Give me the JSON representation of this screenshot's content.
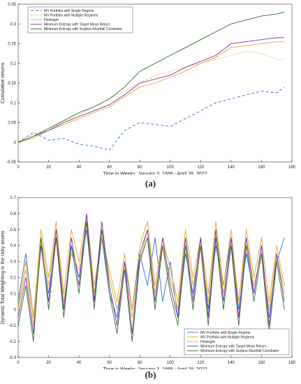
{
  "captions": {
    "a": "(a)",
    "b": "(b)"
  },
  "colors": {
    "mv_single": "#2f6fd6",
    "mv_multi": "#e0a830",
    "hindsight": "#e0a830",
    "me_target": "#7b2fa8",
    "me_surplus": "#2e6f2a"
  },
  "chart_data": [
    {
      "type": "line",
      "xlabel": "Time in Weeks: January 3, 1999 - April 28, 2022",
      "ylabel": "Cumulative returns",
      "xlim": [
        0,
        180
      ],
      "ylim": [
        -0.05,
        0.35
      ],
      "xticks": [
        0,
        20,
        40,
        60,
        80,
        100,
        120,
        140,
        160,
        180
      ],
      "yticks": [
        -0.05,
        0,
        0.05,
        0.1,
        0.15,
        0.2,
        0.25,
        0.3,
        0.35
      ],
      "legend_position": "top-left",
      "x_points": [
        0,
        10,
        20,
        30,
        40,
        50,
        60,
        70,
        80,
        90,
        100,
        110,
        120,
        130,
        140,
        150,
        160,
        170,
        175
      ],
      "series": [
        {
          "name": "MV Portfolio with Single Regime",
          "style": "dashed",
          "values": [
            0,
            0.025,
            0.005,
            0.01,
            -0.005,
            -0.01,
            -0.02,
            0.03,
            0.05,
            0.045,
            0.04,
            0.06,
            0.08,
            0.1,
            0.11,
            0.12,
            0.13,
            0.125,
            0.14
          ]
        },
        {
          "name": "MV Portfolio with Multiple Regimes",
          "style": "dotted",
          "values": [
            0,
            0.02,
            0.035,
            0.05,
            0.07,
            0.09,
            0.11,
            0.13,
            0.15,
            0.17,
            0.18,
            0.19,
            0.2,
            0.21,
            0.22,
            0.23,
            0.225,
            0.21,
            0.21
          ]
        },
        {
          "name": "Hindsight",
          "style": "solid",
          "values": [
            0,
            0.01,
            0.03,
            0.045,
            0.06,
            0.075,
            0.09,
            0.115,
            0.14,
            0.15,
            0.165,
            0.18,
            0.2,
            0.215,
            0.24,
            0.245,
            0.25,
            0.255,
            0.255
          ]
        },
        {
          "name": "Minimum Entropy with Target Mean Return",
          "style": "solid",
          "values": [
            0,
            0.015,
            0.03,
            0.05,
            0.065,
            0.08,
            0.095,
            0.12,
            0.15,
            0.16,
            0.17,
            0.19,
            0.205,
            0.22,
            0.25,
            0.255,
            0.26,
            0.265,
            0.265
          ]
        },
        {
          "name": "Minimum Entropy with Surplus-Shortfall Constraint",
          "style": "solid",
          "values": [
            0,
            0.015,
            0.035,
            0.055,
            0.075,
            0.09,
            0.11,
            0.14,
            0.18,
            0.2,
            0.22,
            0.24,
            0.26,
            0.28,
            0.3,
            0.31,
            0.32,
            0.325,
            0.33
          ]
        }
      ]
    },
    {
      "type": "line",
      "xlabel": "Time in Weeks: January 3, 1999 - April 28, 2022",
      "ylabel": "Dynamic Total Weighting in the risky assets",
      "xlim": [
        0,
        180
      ],
      "ylim": [
        -0.3,
        0.7
      ],
      "xticks": [
        0,
        20,
        40,
        60,
        80,
        100,
        120,
        140,
        160,
        180
      ],
      "yticks": [
        -0.3,
        -0.2,
        -0.1,
        0,
        0.1,
        0.2,
        0.3,
        0.4,
        0.5,
        0.6,
        0.7
      ],
      "legend_position": "bottom-right",
      "x_points": [
        0,
        5,
        10,
        15,
        20,
        25,
        30,
        35,
        40,
        45,
        50,
        55,
        60,
        65,
        70,
        75,
        80,
        85,
        90,
        95,
        100,
        105,
        110,
        115,
        120,
        125,
        130,
        135,
        140,
        145,
        150,
        155,
        160,
        165,
        170,
        175
      ],
      "series": [
        {
          "name": "MV Portfolio with Single Regime",
          "style": "solid",
          "values": [
            0.05,
            0.35,
            -0.05,
            0.4,
            0.1,
            0.45,
            0.0,
            0.4,
            0.2,
            0.5,
            0.05,
            0.45,
            0.1,
            -0.05,
            0.3,
            0.0,
            0.35,
            0.15,
            0.45,
            0.05,
            0.3,
            -0.05,
            0.35,
            0.1,
            0.45,
            0.0,
            0.4,
            0.15,
            0.45,
            0.0,
            0.35,
            0.1,
            0.4,
            -0.05,
            0.3,
            0.45
          ]
        },
        {
          "name": "MV Portfolio with Multiple Regimes",
          "style": "solid",
          "values": [
            0.0,
            0.25,
            -0.1,
            0.45,
            0.15,
            0.5,
            0.05,
            0.35,
            0.25,
            0.55,
            0.1,
            0.5,
            0.2,
            0.0,
            0.25,
            -0.05,
            0.3,
            0.5,
            0.1,
            0.4,
            0.2,
            0.0,
            0.45,
            0.15,
            0.4,
            0.05,
            0.5,
            0.1,
            0.4,
            0.05,
            0.45,
            0.15,
            0.35,
            0.0,
            0.35,
            0.1
          ]
        },
        {
          "name": "Hindsight",
          "style": "solid",
          "values": [
            0.02,
            0.3,
            -0.05,
            0.5,
            0.2,
            0.55,
            0.1,
            0.5,
            0.3,
            0.6,
            0.15,
            0.45,
            0.25,
            0.05,
            0.35,
            0.0,
            0.4,
            0.55,
            0.15,
            0.45,
            0.25,
            0.05,
            0.5,
            0.2,
            0.45,
            0.1,
            0.55,
            0.15,
            0.5,
            0.05,
            0.5,
            0.2,
            0.45,
            0.05,
            0.4,
            0.15
          ]
        },
        {
          "name": "Minimum Entropy with Target Mean Return",
          "style": "solid",
          "values": [
            -0.05,
            0.2,
            -0.15,
            0.4,
            0.05,
            0.5,
            0.0,
            0.45,
            0.15,
            0.6,
            0.05,
            0.55,
            0.15,
            -0.1,
            0.3,
            -0.15,
            0.35,
            0.5,
            0.05,
            0.45,
            0.15,
            -0.05,
            0.45,
            0.05,
            0.45,
            -0.05,
            0.5,
            0.05,
            0.45,
            -0.05,
            0.45,
            0.1,
            0.4,
            -0.1,
            0.35,
            0.05
          ]
        },
        {
          "name": "Minimum Entropy with Surplus-Shortfall Constraint",
          "style": "solid",
          "values": [
            -0.1,
            0.15,
            -0.2,
            0.45,
            0.0,
            0.45,
            -0.05,
            0.4,
            0.1,
            0.55,
            0.0,
            0.5,
            0.1,
            -0.15,
            0.25,
            -0.2,
            0.3,
            0.45,
            0.0,
            0.4,
            0.1,
            -0.1,
            0.4,
            0.0,
            0.4,
            -0.1,
            0.45,
            0.0,
            0.4,
            -0.1,
            0.4,
            0.05,
            0.35,
            -0.15,
            0.3,
            0.0
          ]
        }
      ]
    }
  ]
}
